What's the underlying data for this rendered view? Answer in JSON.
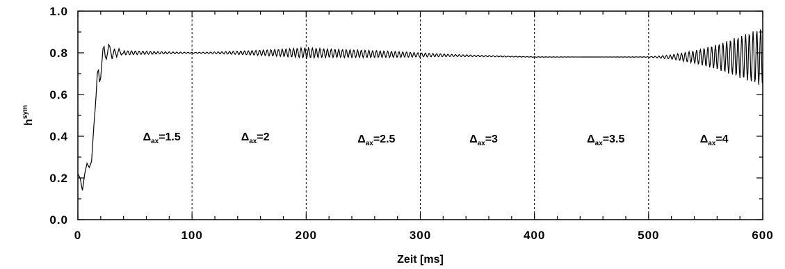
{
  "chart_data": {
    "type": "line",
    "title": "",
    "xlabel": "Zeit [ms]",
    "ylabel": {
      "main": "h",
      "sup": "sym"
    },
    "xlim": [
      0,
      600
    ],
    "ylim": [
      0.0,
      1.0
    ],
    "xticks": [
      0,
      100,
      200,
      300,
      400,
      500,
      600
    ],
    "xtick_labels": [
      "0",
      "100",
      "200",
      "300",
      "400",
      "500",
      "600"
    ],
    "yticks": [
      0.0,
      0.2,
      0.4,
      0.6,
      0.8,
      1.0
    ],
    "ytick_labels": [
      "0.0",
      "0.2",
      "0.4",
      "0.6",
      "0.8",
      "1.0"
    ],
    "grid": false,
    "vlines": [
      100,
      200,
      300,
      400,
      500
    ],
    "regions": [
      {
        "symbol": "Δ",
        "sub": "ax",
        "value": "=1.5",
        "x": 57,
        "y": 0.38
      },
      {
        "symbol": "Δ",
        "sub": "ax",
        "value": "=2",
        "x": 143,
        "y": 0.38
      },
      {
        "symbol": "Δ",
        "sub": "ax",
        "value": "=2.5",
        "x": 245,
        "y": 0.37
      },
      {
        "symbol": "Δ",
        "sub": "ax",
        "value": "=3",
        "x": 343,
        "y": 0.37
      },
      {
        "symbol": "Δ",
        "sub": "ax",
        "value": "=3.5",
        "x": 446,
        "y": 0.37
      },
      {
        "symbol": "Δ",
        "sub": "ax",
        "value": "=4",
        "x": 545,
        "y": 0.37
      }
    ],
    "series": [
      {
        "x": [
          0,
          2,
          4,
          6,
          8,
          10,
          12,
          14,
          15,
          16,
          17,
          18,
          19,
          20,
          21,
          22,
          23,
          24,
          25,
          26,
          27,
          28,
          30,
          32,
          34,
          36,
          38,
          40,
          45,
          50,
          60,
          80,
          100,
          150,
          200,
          250,
          300,
          350,
          400,
          450,
          500,
          550,
          600
        ],
        "y": [
          0.22,
          0.2,
          0.14,
          0.22,
          0.27,
          0.25,
          0.28,
          0.45,
          0.52,
          0.6,
          0.7,
          0.72,
          0.66,
          0.68,
          0.75,
          0.82,
          0.83,
          0.78,
          0.77,
          0.8,
          0.84,
          0.83,
          0.77,
          0.82,
          0.78,
          0.82,
          0.79,
          0.8,
          0.8,
          0.8,
          0.8,
          0.8,
          0.8,
          0.8,
          0.8,
          0.795,
          0.79,
          0.785,
          0.78,
          0.78,
          0.78,
          0.78,
          0.78
        ],
        "oscillation_amplitude": {
          "x": [
            0,
            40,
            100,
            120,
            150,
            180,
            200,
            220,
            250,
            280,
            300,
            330,
            360,
            400,
            450,
            500,
            520,
            540,
            560,
            580,
            595,
            600
          ],
          "a": [
            0,
            0.01,
            0.002,
            0.004,
            0.01,
            0.018,
            0.025,
            0.02,
            0.018,
            0.014,
            0.01,
            0.005,
            0.003,
            0.001,
            0.0,
            0.001,
            0.01,
            0.03,
            0.06,
            0.1,
            0.13,
            0.14
          ]
        }
      }
    ]
  }
}
